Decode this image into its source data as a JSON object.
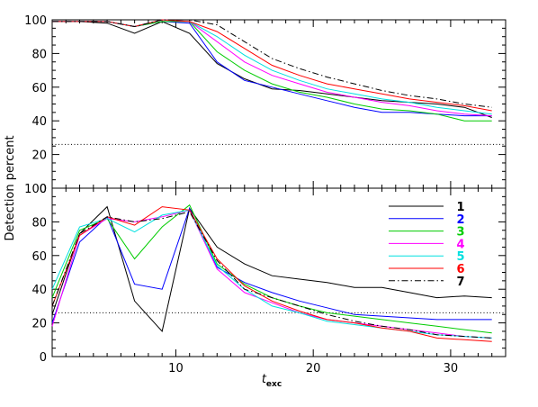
{
  "chart_data": [
    {
      "type": "line",
      "panel": "top",
      "ylabel": "Detection  percent",
      "xlim": [
        1,
        34
      ],
      "ylim": [
        0,
        100
      ],
      "yticks": [
        0,
        20,
        40,
        60,
        80,
        100
      ],
      "xticks": [
        10,
        20,
        30
      ],
      "reference_line": {
        "y": 26,
        "style": "dotted"
      },
      "x": [
        1,
        3,
        5,
        7,
        9,
        11,
        13,
        15,
        17,
        19,
        21,
        23,
        25,
        27,
        29,
        31,
        33
      ],
      "series": [
        {
          "name": "1",
          "color": "#000000",
          "dash": "solid",
          "values": [
            99,
            99,
            98,
            92,
            99,
            92,
            74,
            65,
            59,
            58,
            56,
            54,
            52,
            51,
            50,
            48,
            42
          ]
        },
        {
          "name": "2",
          "color": "#0000ff",
          "dash": "solid",
          "values": [
            99,
            99,
            99,
            96,
            99,
            98,
            75,
            64,
            60,
            56,
            52,
            48,
            45,
            45,
            44,
            43,
            43
          ]
        },
        {
          "name": "3",
          "color": "#00cc00",
          "dash": "solid",
          "values": [
            99,
            99,
            99,
            96,
            99,
            99,
            81,
            70,
            62,
            57,
            54,
            50,
            47,
            46,
            44,
            40,
            40
          ]
        },
        {
          "name": "4",
          "color": "#ff00ff",
          "dash": "solid",
          "values": [
            99,
            99,
            99,
            96,
            100,
            99,
            87,
            75,
            67,
            62,
            57,
            54,
            51,
            49,
            46,
            44,
            43
          ]
        },
        {
          "name": "5",
          "color": "#00e0e0",
          "dash": "solid",
          "values": [
            99,
            99,
            99,
            96,
            100,
            99,
            90,
            79,
            70,
            64,
            59,
            56,
            53,
            51,
            48,
            46,
            44
          ]
        },
        {
          "name": "6",
          "color": "#ff0000",
          "dash": "solid",
          "values": [
            99,
            99,
            99,
            96,
            100,
            99,
            93,
            83,
            73,
            67,
            62,
            59,
            56,
            53,
            51,
            49,
            46
          ]
        },
        {
          "name": "7",
          "color": "#000000",
          "dash": "dashdot",
          "values": [
            99,
            99,
            99,
            96,
            100,
            100,
            97,
            87,
            77,
            71,
            66,
            62,
            58,
            55,
            53,
            50,
            48
          ]
        }
      ]
    },
    {
      "type": "line",
      "panel": "bottom",
      "xlabel": "t",
      "xlabel_sub": "exc",
      "ylabel": "Detection  percent",
      "xlim": [
        1,
        34
      ],
      "ylim": [
        0,
        100
      ],
      "yticks": [
        0,
        20,
        40,
        60,
        80,
        100
      ],
      "xticks": [
        10,
        20,
        30
      ],
      "reference_line": {
        "y": 26,
        "style": "dotted"
      },
      "legend": {
        "position": "top-right",
        "labels": [
          "1",
          "2",
          "3",
          "4",
          "5",
          "6",
          "7"
        ]
      },
      "x": [
        1,
        3,
        5,
        7,
        9,
        11,
        13,
        15,
        17,
        19,
        21,
        23,
        25,
        27,
        29,
        31,
        33
      ],
      "series": [
        {
          "name": "1",
          "color": "#000000",
          "dash": "solid",
          "values": [
            25,
            73,
            89,
            33,
            15,
            88,
            65,
            55,
            48,
            46,
            44,
            41,
            41,
            38,
            35,
            36,
            35
          ]
        },
        {
          "name": "2",
          "color": "#0000ff",
          "dash": "solid",
          "values": [
            20,
            68,
            83,
            43,
            40,
            88,
            53,
            44,
            38,
            33,
            29,
            25,
            24,
            23,
            22,
            22,
            22
          ]
        },
        {
          "name": "3",
          "color": "#00cc00",
          "dash": "solid",
          "values": [
            35,
            75,
            82,
            58,
            77,
            90,
            55,
            43,
            35,
            30,
            26,
            24,
            22,
            20,
            18,
            16,
            14
          ]
        },
        {
          "name": "4",
          "color": "#ff00ff",
          "dash": "solid",
          "values": [
            18,
            72,
            82,
            80,
            83,
            87,
            52,
            38,
            32,
            26,
            22,
            20,
            18,
            16,
            14,
            12,
            11
          ]
        },
        {
          "name": "5",
          "color": "#00e0e0",
          "dash": "solid",
          "values": [
            40,
            77,
            82,
            74,
            84,
            87,
            54,
            40,
            30,
            26,
            21,
            19,
            17,
            15,
            13,
            12,
            11
          ]
        },
        {
          "name": "6",
          "color": "#ff0000",
          "dash": "solid",
          "values": [
            30,
            72,
            83,
            78,
            89,
            87,
            58,
            42,
            33,
            27,
            22,
            20,
            17,
            15,
            11,
            10,
            9
          ]
        },
        {
          "name": "7",
          "color": "#000000",
          "dash": "dashdot",
          "values": [
            30,
            73,
            83,
            80,
            82,
            86,
            57,
            40,
            35,
            30,
            25,
            21,
            18,
            16,
            13,
            12,
            11
          ]
        }
      ]
    }
  ]
}
